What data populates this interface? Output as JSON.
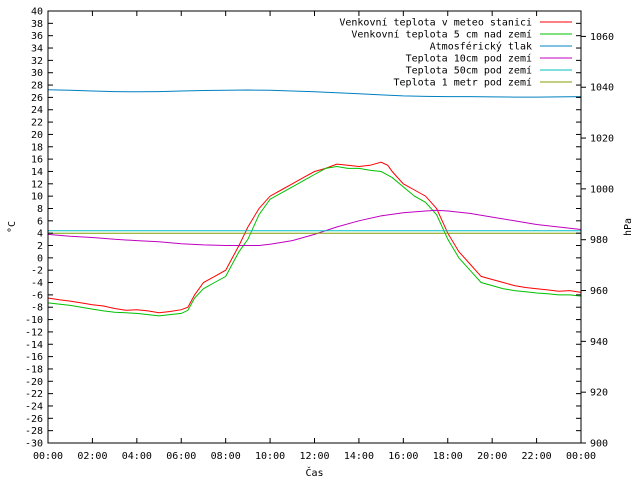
{
  "chart_data": {
    "type": "line",
    "title": "",
    "xlabel": "Čas",
    "ylabel": "°C",
    "y2label": "hPa",
    "ylim": [
      -30,
      40
    ],
    "y2lim": [
      900,
      1070
    ],
    "xlim": [
      0,
      24
    ],
    "yticks": [
      40,
      38,
      36,
      34,
      32,
      30,
      28,
      26,
      24,
      22,
      20,
      18,
      16,
      14,
      12,
      10,
      8,
      6,
      4,
      2,
      0,
      -2,
      -4,
      -6,
      -8,
      -10,
      -12,
      -14,
      -16,
      -18,
      -20,
      -22,
      -24,
      -26,
      -28,
      -30
    ],
    "y2ticks": [
      1060,
      1040,
      1020,
      1000,
      980,
      960,
      940,
      920,
      900
    ],
    "xticks": [
      "00:00",
      "02:00",
      "04:00",
      "06:00",
      "08:00",
      "10:00",
      "12:00",
      "14:00",
      "16:00",
      "18:00",
      "20:00",
      "22:00",
      "00:00"
    ],
    "legend_position": "top-right",
    "series": [
      {
        "name": "Venkovní teplota v meteo stanici",
        "color": "#ff0000",
        "axis": "left",
        "x": [
          0,
          0.5,
          1,
          1.5,
          2,
          2.5,
          3,
          3.5,
          4,
          4.5,
          5,
          5.5,
          6,
          6.3,
          6.6,
          7,
          7.5,
          8,
          8.3,
          8.6,
          9,
          9.5,
          10,
          10.5,
          11,
          11.5,
          12,
          12.5,
          13,
          13.5,
          14,
          14.5,
          15,
          15.3,
          15.5,
          16,
          16.5,
          17,
          17.5,
          18,
          18.5,
          19,
          19.5,
          20,
          20.5,
          21,
          21.5,
          22,
          22.5,
          23,
          23.5,
          24
        ],
        "y": [
          -6.5,
          -6.8,
          -7,
          -7.3,
          -7.6,
          -7.8,
          -8.2,
          -8.5,
          -8.4,
          -8.6,
          -8.9,
          -8.7,
          -8.4,
          -8,
          -6,
          -4,
          -3,
          -2,
          0,
          2,
          5,
          8,
          10,
          11,
          12,
          13,
          14,
          14.5,
          15.2,
          15,
          14.8,
          15,
          15.5,
          15,
          14,
          12,
          11,
          10,
          8,
          4,
          1,
          -1,
          -3,
          -3.5,
          -4,
          -4.5,
          -4.8,
          -5,
          -5.2,
          -5.4,
          -5.3,
          -5.6
        ]
      },
      {
        "name": "Venkovní teplota 5 cm nad zemí",
        "color": "#00c000",
        "axis": "left",
        "x": [
          0,
          0.5,
          1,
          1.5,
          2,
          2.5,
          3,
          3.5,
          4,
          4.5,
          5,
          5.5,
          6,
          6.3,
          6.6,
          7,
          7.5,
          8,
          8.3,
          8.6,
          9,
          9.5,
          10,
          10.5,
          11,
          11.5,
          12,
          12.5,
          13,
          13.5,
          14,
          14.5,
          15,
          15.5,
          16,
          16.5,
          17,
          17.5,
          18,
          18.5,
          19,
          19.5,
          20,
          20.5,
          21,
          21.5,
          22,
          22.5,
          23,
          23.5,
          24
        ],
        "y": [
          -7.3,
          -7.5,
          -7.7,
          -8,
          -8.3,
          -8.6,
          -8.8,
          -8.9,
          -9,
          -9.2,
          -9.4,
          -9.2,
          -9,
          -8.5,
          -6.5,
          -5,
          -4,
          -3,
          -1,
          1,
          3,
          7,
          9.5,
          10.5,
          11.5,
          12.5,
          13.5,
          14.5,
          14.8,
          14.5,
          14.5,
          14.2,
          14,
          13,
          11.5,
          10,
          9,
          7,
          3,
          0,
          -2,
          -4,
          -4.5,
          -5,
          -5.3,
          -5.5,
          -5.7,
          -5.8,
          -6,
          -6,
          -6.2
        ]
      },
      {
        "name": "Atmosférický tlak",
        "color": "#0080c0",
        "axis": "right",
        "x": [
          0,
          1,
          2,
          3,
          4,
          5,
          6,
          7,
          8,
          9,
          10,
          11,
          12,
          13,
          14,
          15,
          16,
          17,
          18,
          19,
          20,
          21,
          22,
          23,
          24
        ],
        "y": [
          1039,
          1038.8,
          1038.5,
          1038.3,
          1038.2,
          1038.3,
          1038.5,
          1038.7,
          1038.8,
          1038.9,
          1038.8,
          1038.5,
          1038.2,
          1037.8,
          1037.4,
          1037,
          1036.6,
          1036.4,
          1036.3,
          1036.3,
          1036.2,
          1036.1,
          1036.1,
          1036.2,
          1036.3
        ]
      },
      {
        "name": "Teplota 10cm pod zemí",
        "color": "#c000c0",
        "axis": "left",
        "x": [
          0,
          1,
          2,
          3,
          4,
          5,
          6,
          7,
          8,
          9,
          9.5,
          10,
          11,
          12,
          13,
          14,
          15,
          16,
          17,
          17.5,
          18,
          19,
          20,
          21,
          22,
          23,
          24
        ],
        "y": [
          3.8,
          3.5,
          3.3,
          3,
          2.8,
          2.6,
          2.3,
          2.1,
          2,
          2,
          2,
          2.2,
          2.8,
          3.8,
          5,
          6,
          6.8,
          7.3,
          7.6,
          7.7,
          7.6,
          7.2,
          6.6,
          6,
          5.4,
          5,
          4.6
        ]
      },
      {
        "name": "Teplota 50cm pod zemí",
        "color": "#00c0c0",
        "axis": "left",
        "x": [
          0,
          24
        ],
        "y": [
          4.4,
          4.4
        ]
      },
      {
        "name": "Teplota 1 metr pod zemí",
        "color": "#80a000",
        "axis": "left",
        "x": [
          0,
          24
        ],
        "y": [
          4.0,
          4.0
        ]
      }
    ]
  }
}
